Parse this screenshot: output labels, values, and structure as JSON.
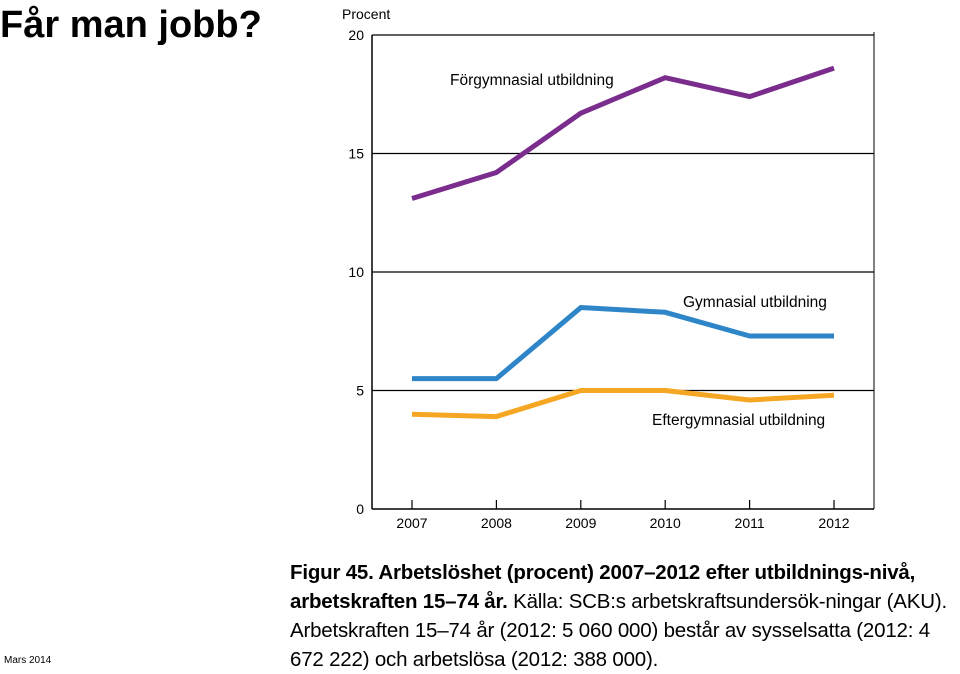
{
  "slide": {
    "title": "Får man jobb?",
    "footer": "Mars 2014"
  },
  "chart_data": {
    "type": "line",
    "title": "",
    "ylabel": "Procent",
    "xlabel": "",
    "ylim": [
      0,
      20
    ],
    "yticks": [
      0,
      5,
      10,
      15,
      20
    ],
    "x": [
      "2007",
      "2008",
      "2009",
      "2010",
      "2011",
      "2012"
    ],
    "grid": "horizontal",
    "series": [
      {
        "name": "Förgymnasial utbildning",
        "color": "#7b2d8e",
        "values": [
          13.1,
          14.2,
          16.7,
          18.2,
          17.4,
          18.6
        ]
      },
      {
        "name": "Gymnasial utbildning",
        "color": "#2e86c8",
        "values": [
          5.5,
          5.5,
          8.5,
          8.3,
          7.3,
          7.3
        ]
      },
      {
        "name": "Eftergymnasial utbildning",
        "color": "#f5a623",
        "values": [
          4.0,
          3.9,
          5.0,
          5.0,
          4.6,
          4.8
        ]
      }
    ]
  },
  "caption": {
    "bold": "Figur 45. Arbetslöshet (procent) 2007–2012 efter utbildnings-nivå, arbetskraften 15–74 år.",
    "text": " Källa: SCB:s arbetskraftsundersök-ningar (AKU). Arbetskraften 15–74 år (2012: 5 060 000) består av sysselsatta (2012: 4 672 222) och arbetslösa (2012: 388 000)."
  }
}
